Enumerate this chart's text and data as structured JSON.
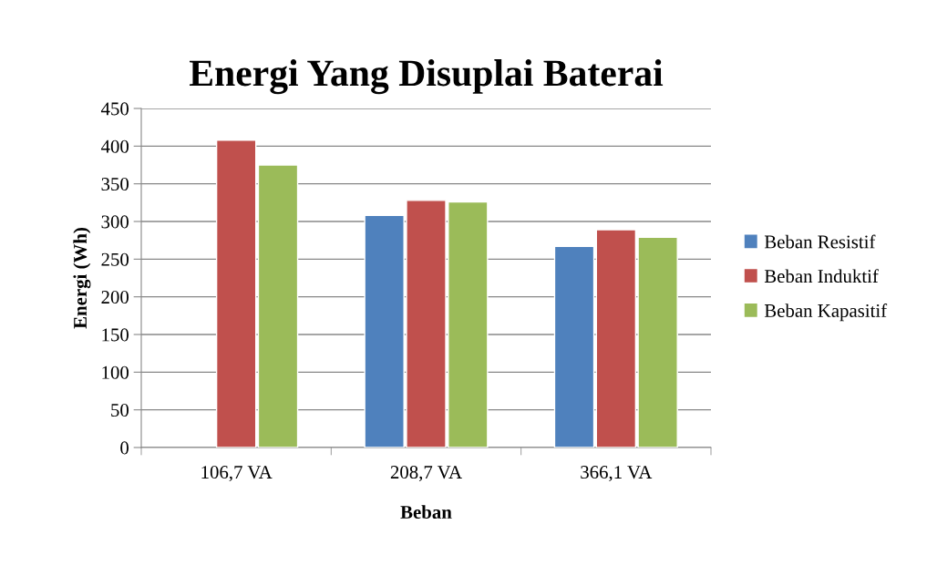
{
  "chart_data": {
    "type": "bar",
    "title": "Energi Yang Disuplai Baterai",
    "xlabel": "Beban",
    "ylabel": "Energi (Wh)",
    "categories": [
      "106,7 VA",
      "208,7 VA",
      "366,1 VA"
    ],
    "series": [
      {
        "name": "Beban Resistif",
        "color": "#4f81bd",
        "values": [
          null,
          308,
          267
        ]
      },
      {
        "name": "Beban Induktif",
        "color": "#c0504d",
        "values": [
          408,
          328,
          289
        ]
      },
      {
        "name": "Beban Kapasitif",
        "color": "#9bbb59",
        "values": [
          375,
          326,
          279
        ]
      }
    ],
    "ylim": [
      0,
      450
    ],
    "yticks": [
      0,
      50,
      100,
      150,
      200,
      250,
      300,
      350,
      400,
      450
    ],
    "grid": "y",
    "legend": "right"
  }
}
